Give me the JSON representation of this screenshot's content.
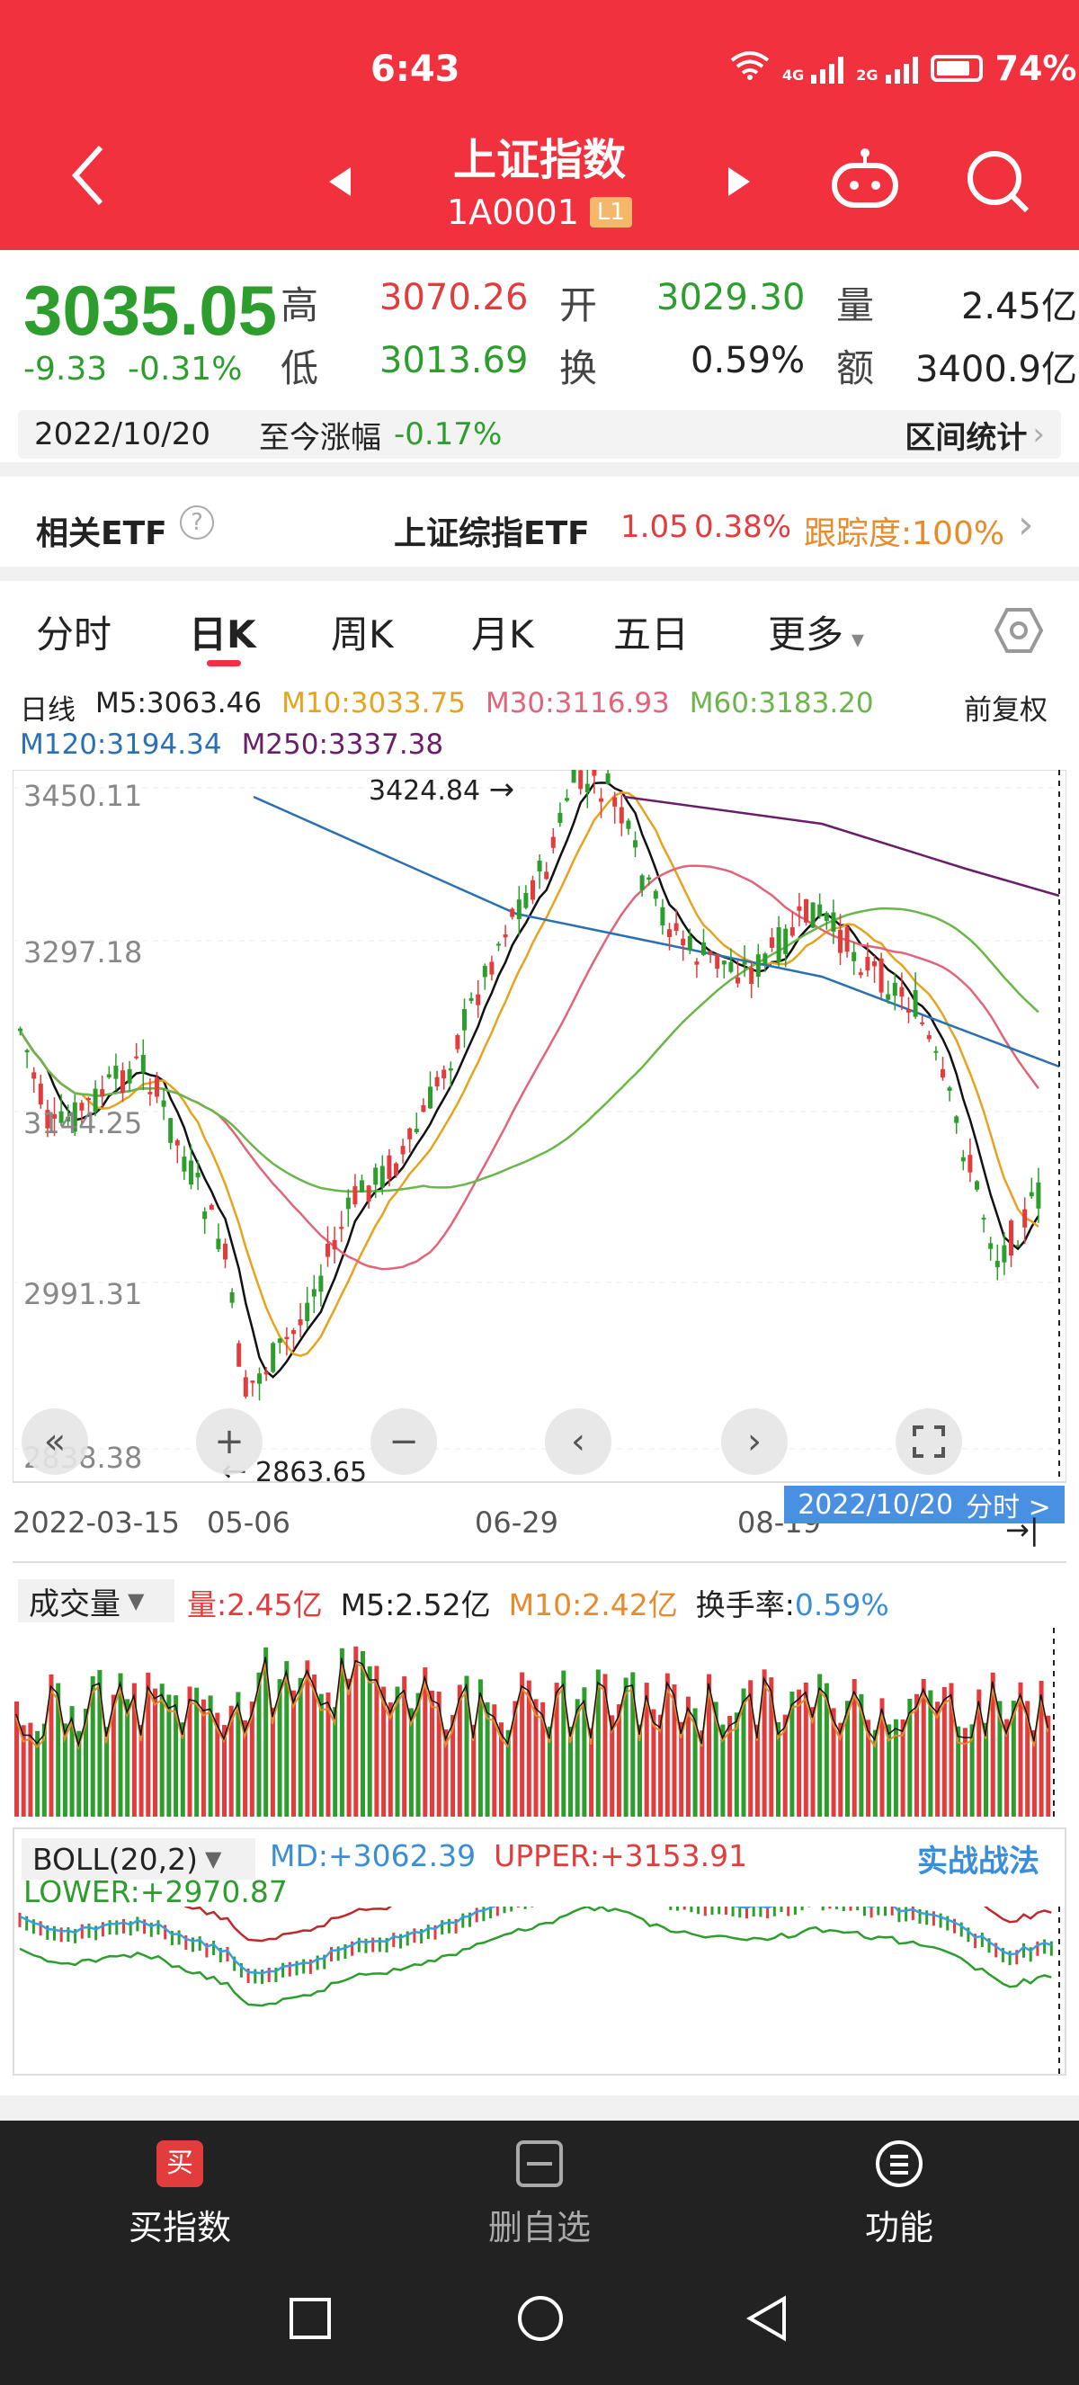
{
  "status": {
    "time": "6:43",
    "battery": "74%",
    "net1": "4G",
    "net2": "2G"
  },
  "header": {
    "title": "上证指数",
    "code": "1A0001",
    "level": "L1"
  },
  "quote": {
    "price": "3035.05",
    "change": "-9.33",
    "change_pct": "-0.31%",
    "high_label": "高",
    "high": "3070.26",
    "open_label": "开",
    "open": "3029.30",
    "vol_label": "量",
    "vol": "2.45亿",
    "low_label": "低",
    "low": "3013.69",
    "turnover_label": "换",
    "turnover": "0.59%",
    "amount_label": "额",
    "amount": "3400.9亿"
  },
  "datebar": {
    "date": "2022/10/20",
    "label": "至今涨幅",
    "value": "-0.17%",
    "stat": "区间统计"
  },
  "etf": {
    "label": "相关ETF",
    "name": "上证综指ETF",
    "price": "1.05",
    "pct": "0.38%",
    "track": "跟踪度:100%"
  },
  "tabs": [
    "分时",
    "日K",
    "周K",
    "月K",
    "五日",
    "更多"
  ],
  "ma": {
    "label": "日线",
    "m5": "M5:3063.46",
    "m10": "M10:3033.75",
    "m30": "M30:3116.93",
    "m60": "M60:3183.20",
    "m120": "M120:3194.34",
    "m250": "M250:3337.38",
    "adjust": "前复权"
  },
  "kchart": {
    "y_ticks": [
      "3450.11",
      "3297.18",
      "3144.25",
      "2991.31",
      "2838.38"
    ],
    "x_ticks": [
      "2022-03-15",
      "05-06",
      "06-29",
      "08-19"
    ],
    "high_mark": "3424.84",
    "low_mark": "2863.65",
    "cursor_date": "2022/10/20",
    "cursor_link": "分时 >"
  },
  "volume": {
    "label": "成交量",
    "v": "量:2.45亿",
    "m5": "M5:2.52亿",
    "m10": "M10:2.42亿",
    "turn_label": "换手率:",
    "turn": "0.59%"
  },
  "boll": {
    "label": "BOLL(20,2)",
    "md": "MD:+3062.39",
    "upper": "UPPER:+3153.91",
    "lower": "LOWER:+2970.87",
    "link": "实战战法"
  },
  "bottom": {
    "buy": "买指数",
    "del": "删自选",
    "func": "功能",
    "buy_icon": "买"
  },
  "colors": {
    "up": "#e23c3c",
    "down": "#2d9e2d",
    "header": "#f2313f"
  }
}
